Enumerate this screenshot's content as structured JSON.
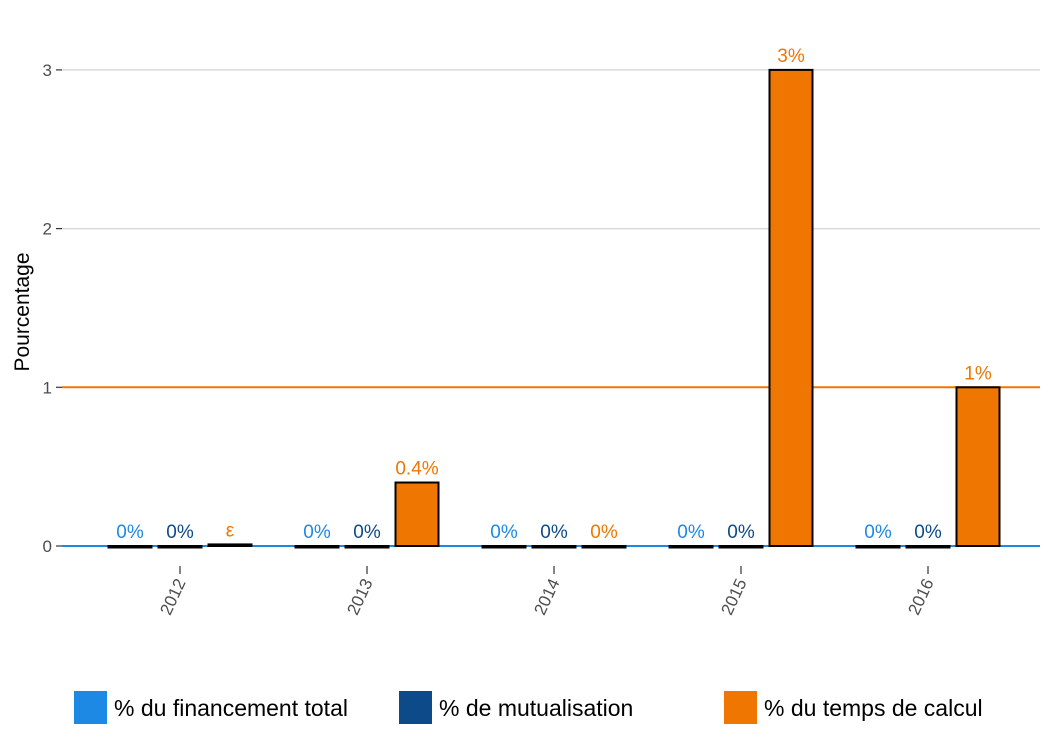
{
  "chart_data": {
    "type": "bar",
    "ylabel": "Pourcentage",
    "xlabel": "",
    "categories": [
      "2012",
      "2013",
      "2014",
      "2015",
      "2016"
    ],
    "ylim": [
      0,
      3.1
    ],
    "yticks": [
      0,
      1,
      2,
      3
    ],
    "grid": "horizontal major gridlines",
    "legend_position": "bottom",
    "series": [
      {
        "name": "% du financement total",
        "color": "#1e88e5",
        "values": [
          0,
          0,
          0,
          0,
          0
        ],
        "labels": [
          "0%",
          "0%",
          "0%",
          "0%",
          "0%"
        ]
      },
      {
        "name": "% de mutualisation",
        "color": "#0d4a8a",
        "values": [
          0,
          0,
          0,
          0,
          0
        ],
        "labels": [
          "0%",
          "0%",
          "0%",
          "0%",
          "0%"
        ]
      },
      {
        "name": "% du temps de calcul",
        "color": "#ef7600",
        "values": [
          0.01,
          0.4,
          0,
          3,
          1
        ],
        "labels": [
          "ε",
          "0.4%",
          "0%",
          "3%",
          "1%"
        ]
      }
    ],
    "reference_lines": [
      {
        "y": 1,
        "color": "#ef7600"
      },
      {
        "y": 0,
        "color": "#1e88e5"
      }
    ]
  }
}
